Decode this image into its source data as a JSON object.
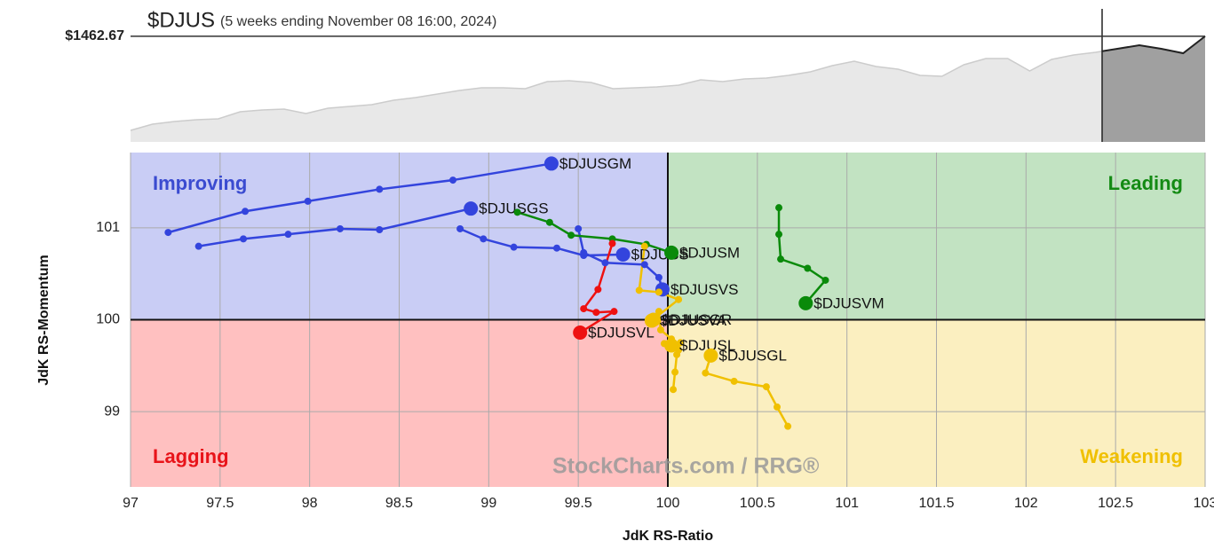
{
  "chart_data": [
    {
      "type": "area",
      "title": "$DJUS",
      "subtitle": "(5 weeks ending November 08 16:00, 2024)",
      "values": [
        1303.5,
        1314,
        1318.5,
        1321.5,
        1323,
        1335,
        1338,
        1339.5,
        1332,
        1341,
        1344,
        1347,
        1354.5,
        1359,
        1365,
        1371,
        1375.5,
        1375.5,
        1374,
        1386,
        1387.5,
        1384.5,
        1374,
        1375.5,
        1377,
        1380,
        1389,
        1386,
        1390.5,
        1392,
        1396.5,
        1402.5,
        1413,
        1420.5,
        1411.5,
        1407,
        1396.5,
        1395,
        1414.5,
        1425,
        1425,
        1404,
        1423.5,
        1431,
        1435.5,
        1441.5,
        1447.5,
        1441.5,
        1434,
        1462.67
      ],
      "ylim": [
        1284,
        1509
      ],
      "yticks": [
        {
          "value": 1462.67,
          "label": "$1462.67"
        }
      ],
      "color": "#aaaaaa"
    },
    {
      "type": "rrg",
      "xlabel": "JdK RS-Ratio",
      "ylabel": "JdK RS-Momentum",
      "xlim": [
        97,
        103
      ],
      "ylim": [
        98.18,
        101.82
      ],
      "xticks": [
        97,
        97.5,
        98,
        98.5,
        99,
        99.5,
        100,
        100.5,
        101,
        101.5,
        102,
        102.5,
        103
      ],
      "yticks": [
        99,
        100,
        101
      ],
      "grid": true,
      "center": [
        100,
        100
      ],
      "quadrants": [
        {
          "label": "Improving",
          "corner": "top-left",
          "color": "#3a4bd0",
          "fill": "#c9cdf5"
        },
        {
          "label": "Leading",
          "corner": "top-right",
          "color": "#138a13",
          "fill": "#c2e3c2"
        },
        {
          "label": "Lagging",
          "corner": "bottom-left",
          "color": "#e8141a",
          "fill": "#ffc0c0"
        },
        {
          "label": "Weakening",
          "corner": "bottom-right",
          "color": "#f0c000",
          "fill": "#fbefc0"
        }
      ],
      "watermark": "StockCharts.com / RRG®",
      "series": [
        {
          "name": "$DJUSGM",
          "color": "#3344dd",
          "x": [
            97.21,
            97.64,
            97.99,
            98.39,
            98.8,
            99.35
          ],
          "y": [
            100.95,
            101.18,
            101.29,
            101.42,
            101.52,
            101.7
          ]
        },
        {
          "name": "$DJUSGS",
          "color": "#3344dd",
          "x": [
            97.38,
            97.63,
            97.88,
            98.17,
            98.39,
            98.9
          ],
          "y": [
            100.8,
            100.88,
            100.93,
            100.99,
            100.98,
            101.21
          ]
        },
        {
          "name": "$DJUSS",
          "color": "#3344dd",
          "x": [
            98.84,
            98.97,
            99.14,
            99.38,
            99.53,
            99.75
          ],
          "y": [
            100.99,
            100.88,
            100.79,
            100.78,
            100.7,
            100.71
          ]
        },
        {
          "name": "$DJUSVS",
          "color": "#3344dd",
          "x": [
            99.5,
            99.53,
            99.65,
            99.87,
            99.95,
            99.97
          ],
          "y": [
            100.99,
            100.73,
            100.62,
            100.6,
            100.46,
            100.33
          ]
        },
        {
          "name": "$DJUSM",
          "color": "#0a8a0a",
          "x": [
            99.16,
            99.34,
            99.46,
            99.69,
            99.88,
            100.02
          ],
          "y": [
            101.17,
            101.06,
            100.92,
            100.88,
            100.82,
            100.73
          ]
        },
        {
          "name": "$DJUSVM",
          "color": "#0a8a0a",
          "x": [
            100.62,
            100.62,
            100.63,
            100.78,
            100.88,
            100.77
          ],
          "y": [
            101.22,
            100.93,
            100.66,
            100.56,
            100.43,
            100.18
          ]
        },
        {
          "name": "$DJUSVL",
          "color": "#ee1111",
          "x": [
            99.69,
            99.61,
            99.53,
            99.6,
            99.7,
            99.51
          ],
          "y": [
            100.83,
            100.33,
            100.12,
            100.08,
            100.09,
            99.86
          ]
        },
        {
          "name": "$DJUSVA",
          "color": "#f0c000",
          "x": [
            99.87,
            99.84,
            99.95,
            100.06,
            99.91
          ],
          "y": [
            100.8,
            100.32,
            100.3,
            100.22,
            99.99
          ]
        },
        {
          "name": "$DJUSGR",
          "color": "#f0c000",
          "x": [
            100.06,
            100.02,
            99.96,
            99.95,
            99.92
          ],
          "y": [
            99.67,
            99.79,
            99.89,
            100.09,
            100.0
          ]
        },
        {
          "name": "$DJUSL",
          "color": "#f0c000",
          "x": [
            100.03,
            100.04,
            100.05,
            100.07,
            99.98,
            100.02
          ],
          "y": [
            99.24,
            99.43,
            99.62,
            99.75,
            99.74,
            99.72
          ]
        },
        {
          "name": "$DJUSGL",
          "color": "#f0c000",
          "x": [
            100.67,
            100.61,
            100.55,
            100.37,
            100.21,
            100.24
          ],
          "y": [
            98.84,
            99.05,
            99.27,
            99.33,
            99.42,
            99.61
          ]
        }
      ]
    }
  ]
}
